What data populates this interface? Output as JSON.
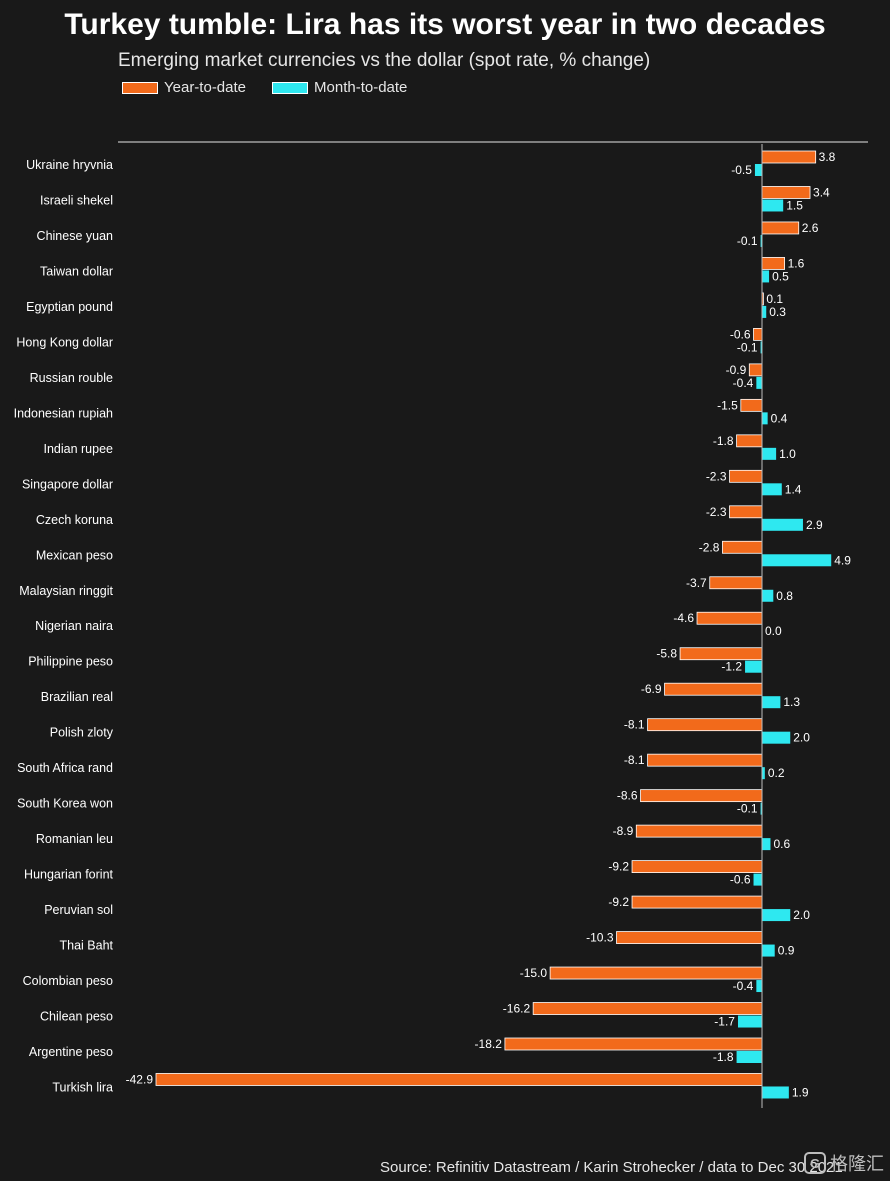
{
  "title": "Turkey tumble: Lira has its worst year in two decades",
  "subtitle": "Emerging market currencies vs the dollar (spot rate, % change)",
  "source": "Source: Refinitiv Datastream / Karin Strohecker / data to Dec 30 2021",
  "watermark": {
    "icon_text": "G",
    "text": "格隆汇"
  },
  "colors": {
    "ytd": "#f26a1b",
    "mtd": "#2ee8f0",
    "background": "#191919"
  },
  "chart_data": {
    "type": "bar",
    "orientation": "horizontal",
    "title": "Turkey tumble: Lira has its worst year in two decades",
    "subtitle": "Emerging market currencies vs the dollar (spot rate, % change)",
    "legend_position": "top-left",
    "grid": false,
    "xlim": [
      -42.9,
      4.9
    ],
    "categories": [
      "Ukraine hryvnia",
      "Israeli shekel",
      "Chinese yuan",
      "Taiwan dollar",
      "Egyptian pound",
      "Hong Kong dollar",
      "Russian rouble",
      "Indonesian rupiah",
      "Indian rupee",
      "Singapore dollar",
      "Czech koruna",
      "Mexican peso",
      "Malaysian ringgit",
      "Nigerian naira",
      "Philippine peso",
      "Brazilian real",
      "Polish zloty",
      "South Africa rand",
      "South Korea won",
      "Romanian leu",
      "Hungarian forint",
      "Peruvian sol",
      "Thai Baht",
      "Colombian peso",
      "Chilean peso",
      "Argentine peso",
      "Turkish lira"
    ],
    "series": [
      {
        "name": "Year-to-date",
        "color": "#f26a1b",
        "values": [
          3.8,
          3.4,
          2.6,
          1.6,
          0.1,
          -0.6,
          -0.9,
          -1.5,
          -1.8,
          -2.3,
          -2.3,
          -2.8,
          -3.7,
          -4.6,
          -5.8,
          -6.9,
          -8.1,
          -8.1,
          -8.6,
          -8.9,
          -9.2,
          -9.2,
          -10.3,
          -15.0,
          -16.2,
          -18.2,
          -42.9
        ]
      },
      {
        "name": "Month-to-date",
        "color": "#2ee8f0",
        "values": [
          -0.5,
          1.5,
          -0.1,
          0.5,
          0.3,
          -0.1,
          -0.4,
          0.4,
          1.0,
          1.4,
          2.9,
          4.9,
          0.8,
          0.0,
          -1.2,
          1.3,
          2.0,
          0.2,
          -0.1,
          0.6,
          -0.6,
          2.0,
          0.9,
          -0.4,
          -1.7,
          -1.8,
          1.9
        ]
      }
    ]
  }
}
